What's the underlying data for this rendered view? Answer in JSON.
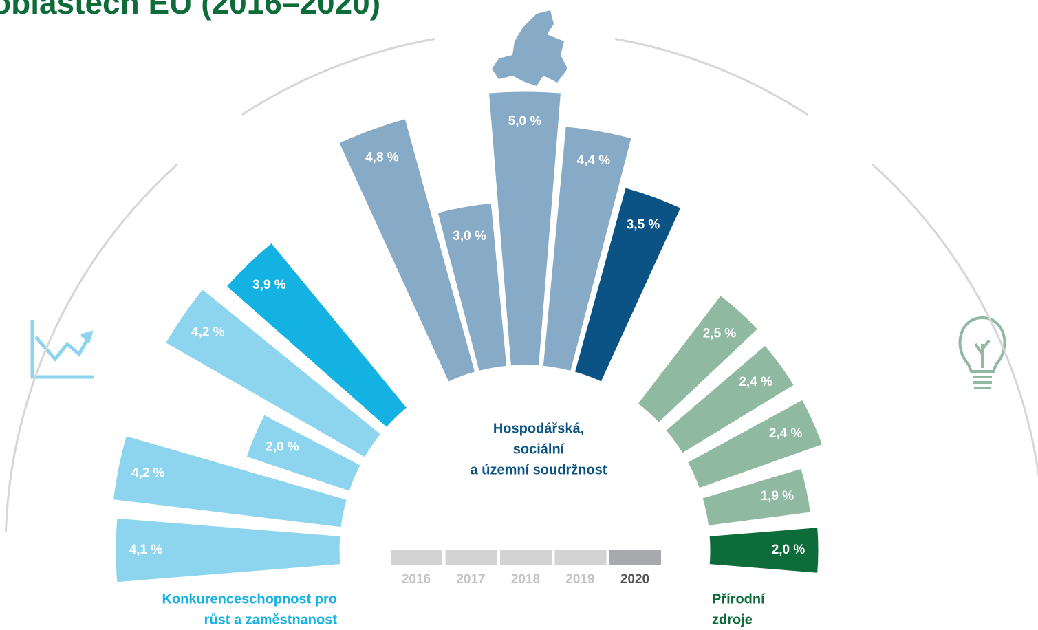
{
  "chart_data": {
    "type": "radial_bar",
    "title": "oblastech EU (2016–2020)",
    "years": [
      "2016",
      "2017",
      "2018",
      "2019",
      "2020"
    ],
    "year_colors": [
      "#d3d3d3",
      "#d3d3d3",
      "#d3d3d3",
      "#d3d3d3",
      "#a7a9ac"
    ],
    "groups": [
      {
        "name": [
          "Konkurenceschopnost pro",
          "růst a zaměstnanost"
        ],
        "values": [
          4.1,
          4.2,
          2.0,
          4.2,
          3.9
        ],
        "value_labels": [
          "4,1 %",
          "4,2 %",
          "2,0 %",
          "4,2 %",
          "3,9 %"
        ],
        "colors": [
          "#8dd5ef",
          "#8dd5ef",
          "#8dd5ef",
          "#8dd5ef",
          "#14b1e3"
        ]
      },
      {
        "name": [
          "Hospodářská,",
          "sociální",
          "a územní soudržnost"
        ],
        "values": [
          4.8,
          3.0,
          5.0,
          4.4,
          3.5
        ],
        "value_labels": [
          "4,8 %",
          "3,0 %",
          "5,0 %",
          "4,4 %",
          "3,5 %"
        ],
        "colors": [
          "#87abc6",
          "#87abc6",
          "#87abc6",
          "#87abc6",
          "#0a5384"
        ]
      },
      {
        "name": [
          "Přírodní",
          "zdroje"
        ],
        "values": [
          2.5,
          2.4,
          2.4,
          1.9,
          2.0
        ],
        "value_labels": [
          "2,5 %",
          "2,4 %",
          "2,4 %",
          "1,9 %",
          "2,0 %"
        ],
        "colors": [
          "#8fb9a0",
          "#8fb9a0",
          "#8fb9a0",
          "#8fb9a0",
          "#0e6b3a"
        ]
      }
    ]
  }
}
